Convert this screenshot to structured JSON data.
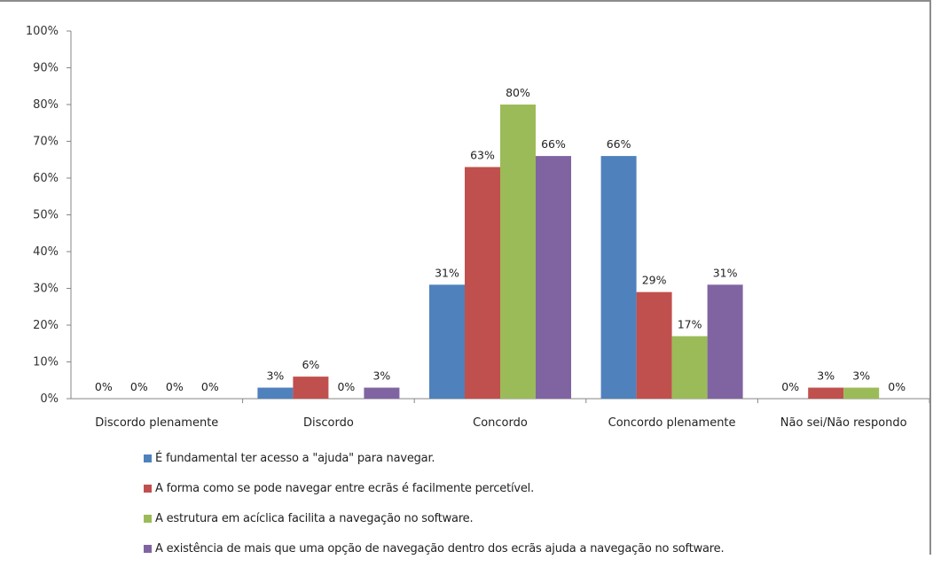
{
  "chart_data": {
    "type": "bar",
    "categories": [
      "Discordo plenamente",
      "Discordo",
      "Concordo",
      "Concordo plenamente",
      "Não sei/Não respondo"
    ],
    "y_ticks": [
      "0%",
      "10%",
      "20%",
      "30%",
      "40%",
      "50%",
      "60%",
      "70%",
      "80%",
      "90%",
      "100%"
    ],
    "ylim": [
      0,
      100
    ],
    "grid": false,
    "legend_position": "bottom",
    "series": [
      {
        "name": "É fundamental ter acesso a \"ajuda\" para navegar.",
        "color": "#4f81bd",
        "values": [
          0,
          3,
          31,
          66,
          0
        ],
        "labels": [
          "0%",
          "3%",
          "31%",
          "66%",
          "0%"
        ]
      },
      {
        "name": "A forma como se pode navegar entre ecrãs é facilmente percetível.",
        "color": "#c0504d",
        "values": [
          0,
          6,
          63,
          29,
          3
        ],
        "labels": [
          "0%",
          "6%",
          "63%",
          "29%",
          "3%"
        ]
      },
      {
        "name": "A estrutura em acíclica facilita a navegação no software.",
        "color": "#9bbb59",
        "values": [
          0,
          0,
          80,
          17,
          3
        ],
        "labels": [
          "0%",
          "0%",
          "80%",
          "17%",
          "3%"
        ]
      },
      {
        "name": "A existência de mais que uma opção de navegação dentro dos ecrãs ajuda a navegação no software.",
        "color": "#8064a2",
        "values": [
          0,
          3,
          66,
          31,
          0
        ],
        "labels": [
          "0%",
          "3%",
          "66%",
          "31%",
          "0%"
        ]
      }
    ]
  }
}
